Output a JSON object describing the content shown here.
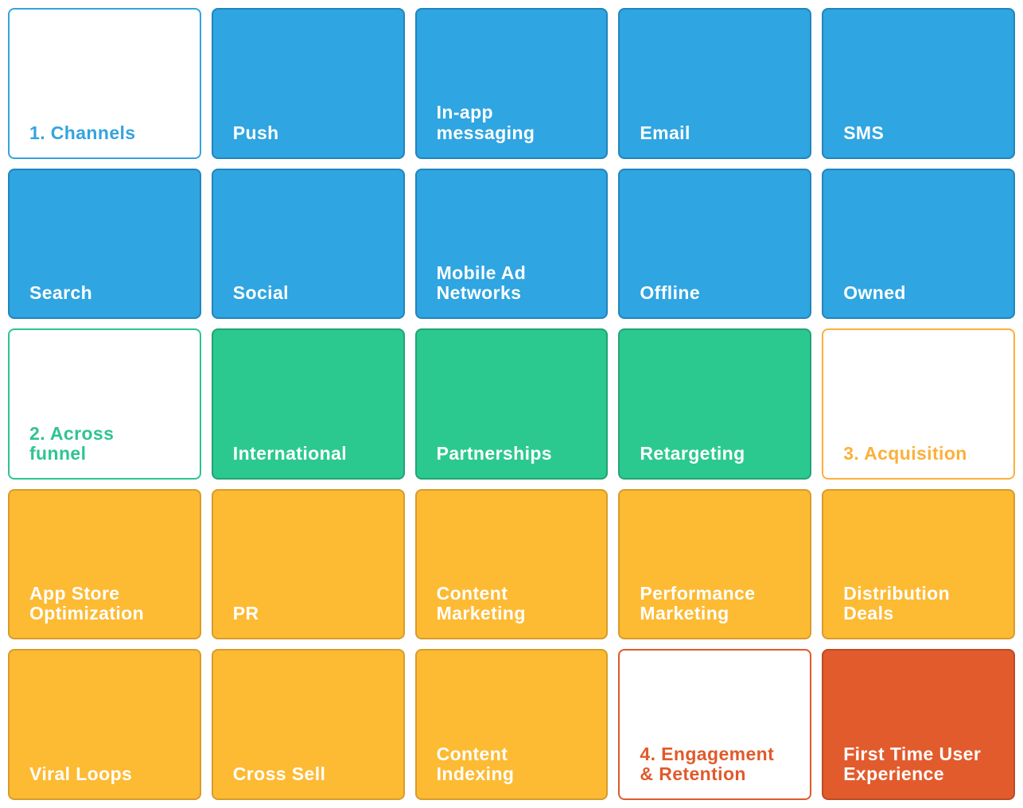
{
  "colors": {
    "blue_bg": "#2FA5E1",
    "blue_border": "#2285BD",
    "green_bg": "#2BC990",
    "green_border": "#23A378",
    "yellow_bg": "#FDBA33",
    "yellow_border": "#D79C2B",
    "red_bg": "#E25B2D",
    "red_border": "#BC4B23",
    "card_text_on_color": "#FFFFFF",
    "background": "#FFFFFF"
  },
  "board": {
    "cards": [
      {
        "label": "1. Channels",
        "variant": "outline",
        "color": "blue"
      },
      {
        "label": "Push",
        "variant": "solid",
        "color": "blue"
      },
      {
        "label": "In-app\nmessaging",
        "variant": "solid",
        "color": "blue"
      },
      {
        "label": "Email",
        "variant": "solid",
        "color": "blue"
      },
      {
        "label": "SMS",
        "variant": "solid",
        "color": "blue"
      },
      {
        "label": "Search",
        "variant": "solid",
        "color": "blue"
      },
      {
        "label": "Social",
        "variant": "solid",
        "color": "blue"
      },
      {
        "label": "Mobile Ad\nNetworks",
        "variant": "solid",
        "color": "blue"
      },
      {
        "label": "Offline",
        "variant": "solid",
        "color": "blue"
      },
      {
        "label": "Owned",
        "variant": "solid",
        "color": "blue"
      },
      {
        "label": "2. Across\nfunnel",
        "variant": "outline",
        "color": "green"
      },
      {
        "label": "International",
        "variant": "solid",
        "color": "green"
      },
      {
        "label": "Partnerships",
        "variant": "solid",
        "color": "green"
      },
      {
        "label": "Retargeting",
        "variant": "solid",
        "color": "green"
      },
      {
        "label": "3. Acquisition",
        "variant": "outline",
        "color": "yellow"
      },
      {
        "label": "App Store\nOptimization",
        "variant": "solid",
        "color": "yellow"
      },
      {
        "label": "PR",
        "variant": "solid",
        "color": "yellow"
      },
      {
        "label": "Content\nMarketing",
        "variant": "solid",
        "color": "yellow"
      },
      {
        "label": "Performance\nMarketing",
        "variant": "solid",
        "color": "yellow"
      },
      {
        "label": "Distribution\nDeals",
        "variant": "solid",
        "color": "yellow"
      },
      {
        "label": "Viral Loops",
        "variant": "solid",
        "color": "yellow"
      },
      {
        "label": "Cross Sell",
        "variant": "solid",
        "color": "yellow"
      },
      {
        "label": "Content\nIndexing",
        "variant": "solid",
        "color": "yellow"
      },
      {
        "label": "4. Engagement\n& Retention",
        "variant": "outline",
        "color": "red"
      },
      {
        "label": "First Time User\nExperience",
        "variant": "solid",
        "color": "red"
      }
    ]
  }
}
